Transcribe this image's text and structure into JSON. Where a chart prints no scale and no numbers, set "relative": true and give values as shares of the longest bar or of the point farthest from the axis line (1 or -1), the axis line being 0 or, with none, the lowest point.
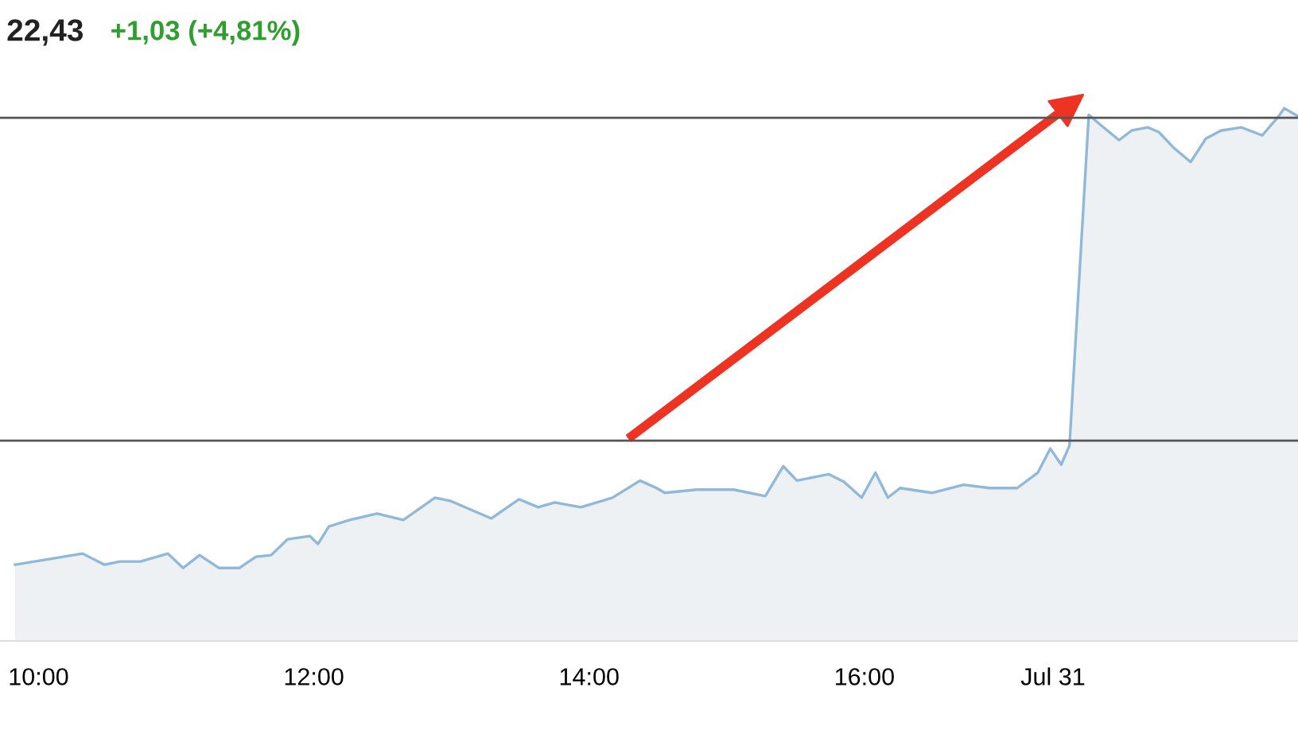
{
  "chart_data": {
    "type": "area",
    "title": "22,43",
    "subtitle": "+1,03 (+4,81%)",
    "relative": true,
    "xlim": [
      9.72,
      19.15
    ],
    "xticks": [
      {
        "value": 10,
        "label": "10:00"
      },
      {
        "value": 12,
        "label": "12:00"
      },
      {
        "value": 14,
        "label": "14:00"
      },
      {
        "value": 16,
        "label": "16:00"
      },
      {
        "value": 17.37,
        "label": "Jul 31"
      }
    ],
    "series": [
      {
        "color": "#8fb8d9",
        "x": [
          9.83,
          10.32,
          10.48,
          10.59,
          10.74,
          10.94,
          11.05,
          11.17,
          11.31,
          11.46,
          11.58,
          11.69,
          11.81,
          11.97,
          12.03,
          12.11,
          12.26,
          12.46,
          12.65,
          12.88,
          12.99,
          13.29,
          13.49,
          13.63,
          13.75,
          13.94,
          14.17,
          14.37,
          14.49,
          14.55,
          14.78,
          15.05,
          15.28,
          15.41,
          15.51,
          15.74,
          15.85,
          15.98,
          16.08,
          16.17,
          16.26,
          16.49,
          16.72,
          16.91,
          17.11,
          17.26,
          17.35,
          17.43,
          17.49,
          17.63,
          17.71,
          17.85,
          17.94,
          18.06,
          18.14,
          18.25,
          18.37,
          18.48,
          18.59,
          18.74,
          18.89,
          19.01,
          19.05,
          19.15
        ],
        "values": [
          0.143,
          0.164,
          0.143,
          0.149,
          0.149,
          0.164,
          0.137,
          0.161,
          0.137,
          0.137,
          0.158,
          0.161,
          0.191,
          0.197,
          0.182,
          0.215,
          0.227,
          0.239,
          0.227,
          0.269,
          0.263,
          0.23,
          0.266,
          0.251,
          0.26,
          0.251,
          0.269,
          0.301,
          0.287,
          0.278,
          0.284,
          0.284,
          0.272,
          0.328,
          0.301,
          0.313,
          0.299,
          0.269,
          0.316,
          0.269,
          0.287,
          0.278,
          0.293,
          0.287,
          0.287,
          0.316,
          0.361,
          0.331,
          0.367,
          0.988,
          0.97,
          0.94,
          0.958,
          0.964,
          0.955,
          0.925,
          0.899,
          0.943,
          0.958,
          0.964,
          0.949,
          0.985,
          1.0,
          0.985
        ]
      }
    ],
    "ref_lines": [
      {
        "axis": "y",
        "value": 0.982,
        "color": "#555555"
      },
      {
        "axis": "y",
        "value": 0.376,
        "color": "#555555"
      }
    ],
    "grid": false,
    "legend": false
  }
}
